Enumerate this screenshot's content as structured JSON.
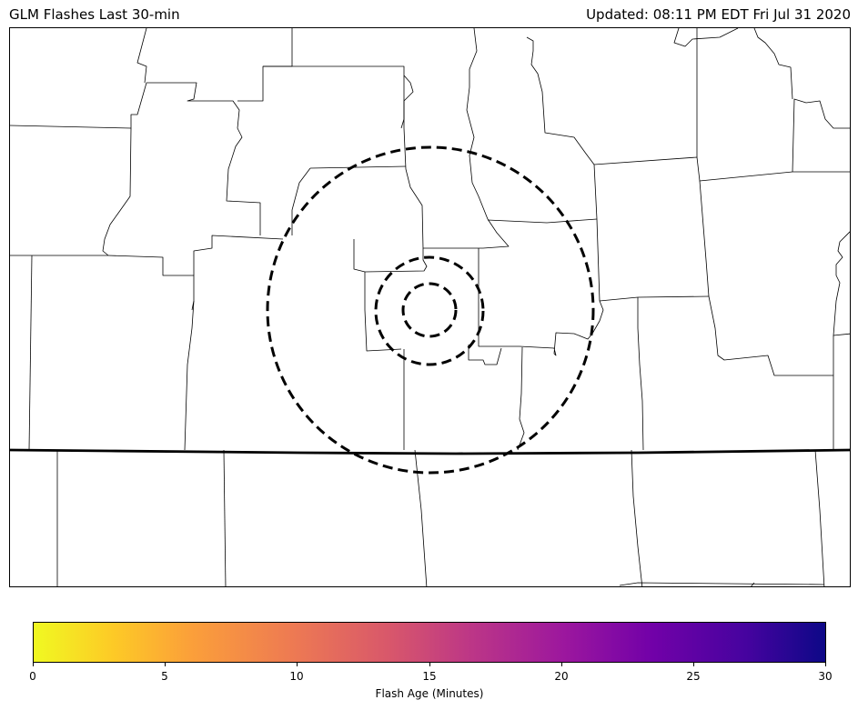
{
  "header": {
    "title_left": "GLM Flashes Last 30-min",
    "title_right": "Updated: 08:11 PM EDT Fri Jul 31 2020"
  },
  "map": {
    "range_rings": 3,
    "state_border_color": "#000000",
    "county_border_color": "#000000"
  },
  "colorbar": {
    "label": "Flash Age (Minutes)",
    "min": 0,
    "max": 30,
    "colormap": "plasma_r",
    "ticks": [
      "0",
      "5",
      "10",
      "15",
      "20",
      "25",
      "30"
    ],
    "colors": [
      "#f0f921",
      "#fb9f3a",
      "#d8576b",
      "#9c179e",
      "#0d0887"
    ]
  }
}
